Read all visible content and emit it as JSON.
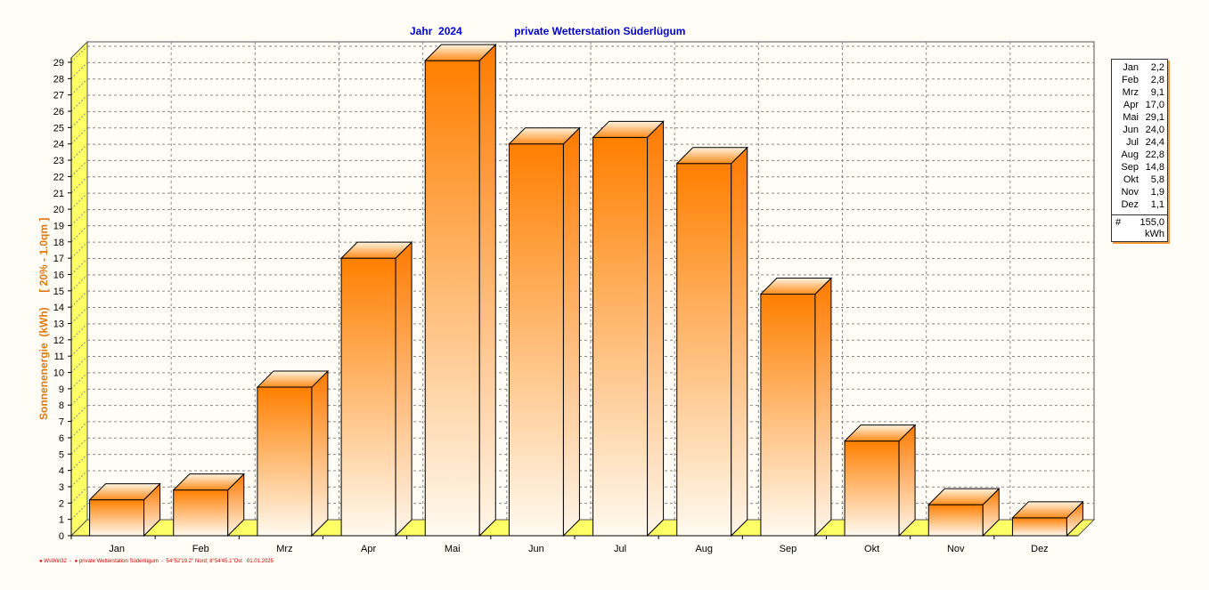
{
  "title": {
    "year_label": "Jahr  2024",
    "station_label": "private Wetterstation Süderlügum"
  },
  "ylabel": "Sonnenenergie  (kWh)     [ 20% - 1.0qm ]",
  "footer": "● WsWin32  -  ● private Wetterstation Süderlügum  -  54°52'19.2\" Nord; 8°54'45.1\"Ost   01.01.2025",
  "colors": {
    "bar_top": "#ff7f00",
    "bar_bottom": "#fffaf0",
    "floor": "#ffff66",
    "grid": "#888888",
    "title": "#0000cc",
    "ylabel": "#e07810"
  },
  "chart_data": {
    "type": "bar",
    "categories": [
      "Jan",
      "Feb",
      "Mrz",
      "Apr",
      "Mai",
      "Jun",
      "Jul",
      "Aug",
      "Sep",
      "Okt",
      "Nov",
      "Dez"
    ],
    "values": [
      2.2,
      2.8,
      9.1,
      17.0,
      29.1,
      24.0,
      24.4,
      22.8,
      14.8,
      5.8,
      1.9,
      1.1
    ],
    "ylim": [
      0,
      29
    ],
    "yticks": [
      "0",
      "1",
      "2",
      "3",
      "4",
      "5",
      "6",
      "7",
      "8",
      "9",
      "10",
      "11",
      "12",
      "13",
      "14",
      "15",
      "16",
      "17",
      "18",
      "19",
      "20",
      "21",
      "22",
      "23",
      "24",
      "25",
      "26",
      "27",
      "28",
      "29"
    ],
    "grid": true,
    "legend": {
      "placement": "right",
      "rows": [
        {
          "month": "Jan",
          "value": "2,2"
        },
        {
          "month": "Feb",
          "value": "2,8"
        },
        {
          "month": "Mrz",
          "value": "9,1"
        },
        {
          "month": "Apr",
          "value": "17,0"
        },
        {
          "month": "Mai",
          "value": "29,1"
        },
        {
          "month": "Jun",
          "value": "24,0"
        },
        {
          "month": "Jul",
          "value": "24,4"
        },
        {
          "month": "Aug",
          "value": "22,8"
        },
        {
          "month": "Sep",
          "value": "14,8"
        },
        {
          "month": "Okt",
          "value": "5,8"
        },
        {
          "month": "Nov",
          "value": "1,9"
        },
        {
          "month": "Dez",
          "value": "1,1"
        }
      ],
      "total_symbol": "#",
      "total": "155,0",
      "unit": "kWh"
    }
  }
}
